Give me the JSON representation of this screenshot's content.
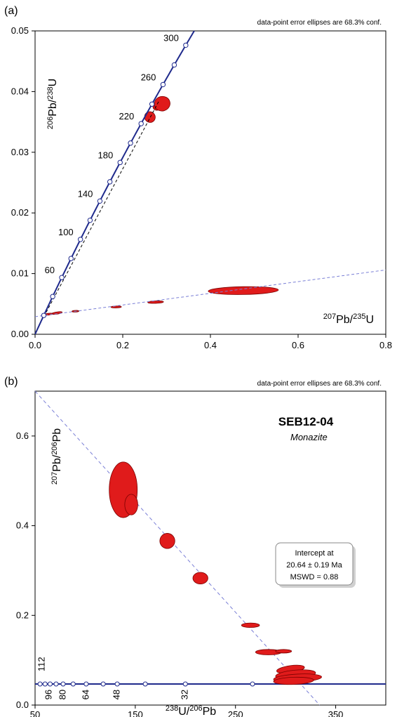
{
  "chart_data": [
    {
      "panel_label": "(a)",
      "type": "scatter",
      "subtype": "Wetherill concordia diagram with error ellipses",
      "note": "data-point error ellipses are 68.3% conf.",
      "xlabel": {
        "sup": "207",
        "base": "Pb/",
        "sup2": "235",
        "base2": "U"
      },
      "ylabel": {
        "sup": "206",
        "base": "Pb/",
        "sup2": "238",
        "base2": "U"
      },
      "xlim": [
        0.0,
        0.8
      ],
      "ylim": [
        0.0,
        0.05
      ],
      "x_ticks": [
        0.0,
        0.2,
        0.4,
        0.6,
        0.8
      ],
      "x_tick_labels": [
        "0.0",
        "0.2",
        "0.4",
        "0.6",
        "0.8"
      ],
      "y_ticks": [
        0.0,
        0.01,
        0.02,
        0.03,
        0.04,
        0.05
      ],
      "y_tick_labels": [
        "0.00",
        "0.01",
        "0.02",
        "0.03",
        "0.04",
        "0.05"
      ],
      "grid": false,
      "colors": {
        "concordia": "#1f2a8c",
        "ellipse_fill": "#e01b1b",
        "ellipse_edge": "#7a0000",
        "discordia": "#7a7fd6",
        "reference": "#000000",
        "age_marker": "#ffffff"
      },
      "concordia_age_labels": [
        {
          "label": "60",
          "age": 60
        },
        {
          "label": "100",
          "age": 100
        },
        {
          "label": "140",
          "age": 140
        },
        {
          "label": "180",
          "age": 180
        },
        {
          "label": "220",
          "age": 220
        },
        {
          "label": "260",
          "age": 260
        },
        {
          "label": "300",
          "age": 300
        }
      ],
      "concordia_age_markers": [
        20,
        40,
        60,
        80,
        100,
        120,
        140,
        160,
        180,
        200,
        220,
        240,
        260,
        280,
        300
      ],
      "discordia_line": {
        "x": [
          0.0,
          0.8
        ],
        "y": [
          0.0029,
          0.0106
        ]
      },
      "reference_line": {
        "x": [
          0.02,
          0.283
        ],
        "y": [
          0.0029,
          0.0385
        ]
      },
      "ellipses": [
        {
          "x": 0.262,
          "y": 0.0358,
          "rx": 0.012,
          "ry": 0.0009,
          "angle": -40
        },
        {
          "x": 0.281,
          "y": 0.0377,
          "rx": 0.013,
          "ry": 0.0007,
          "angle": -35
        },
        {
          "x": 0.29,
          "y": 0.038,
          "rx": 0.018,
          "ry": 0.0012,
          "angle": -15
        },
        {
          "x": 0.475,
          "y": 0.0072,
          "rx": 0.08,
          "ry": 0.00065,
          "angle": -1
        },
        {
          "x": 0.275,
          "y": 0.0053,
          "rx": 0.018,
          "ry": 0.0002,
          "angle": -2
        },
        {
          "x": 0.185,
          "y": 0.0045,
          "rx": 0.012,
          "ry": 0.00015,
          "angle": -2
        },
        {
          "x": 0.092,
          "y": 0.0038,
          "rx": 0.008,
          "ry": 0.00012,
          "angle": -2
        },
        {
          "x": 0.05,
          "y": 0.0035,
          "rx": 0.012,
          "ry": 0.00018,
          "angle": -8
        },
        {
          "x": 0.03,
          "y": 0.0033,
          "rx": 0.01,
          "ry": 0.00015,
          "angle": -8
        }
      ]
    },
    {
      "panel_label": "(b)",
      "type": "scatter",
      "subtype": "Tera-Wasserburg concordia diagram with error ellipses",
      "note": "data-point error ellipses are 68.3% conf.",
      "sample": "SEB12-04",
      "mineral": "Monazite",
      "xlabel": {
        "sup": "238",
        "base": "U/",
        "sup2": "206",
        "base2": "Pb"
      },
      "ylabel": {
        "sup": "207",
        "base": "Pb/",
        "sup2": "206",
        "base2": "Pb"
      },
      "xlim": [
        50,
        400
      ],
      "ylim": [
        0.0,
        0.7
      ],
      "x_ticks": [
        50,
        150,
        250,
        350
      ],
      "x_tick_labels": [
        "50",
        "150",
        "250",
        "350"
      ],
      "y_ticks": [
        0.0,
        0.2,
        0.4,
        0.6
      ],
      "y_tick_labels": [
        "0.0",
        "0.2",
        "0.4",
        "0.6"
      ],
      "grid": false,
      "colors": {
        "concordia": "#1f2a8c",
        "ellipse_fill": "#e01b1b",
        "ellipse_edge": "#7a0000",
        "discordia": "#7a7fd6",
        "age_marker": "#ffffff",
        "box_border": "#888888"
      },
      "intercept_box": {
        "line1": "Intercept at",
        "line2": "20.64 ± 0.19 Ma",
        "line3": "MSWD = 0.88"
      },
      "discordia_line": {
        "x": [
          50,
          334
        ],
        "y": [
          0.7,
          0.0
        ]
      },
      "concordia_y": 0.047,
      "concordia_age_markers": [
        {
          "x": 55
        },
        {
          "x": 60
        },
        {
          "x": 65
        },
        {
          "x": 71
        },
        {
          "x": 78
        },
        {
          "x": 88
        },
        {
          "x": 101
        },
        {
          "x": 118
        },
        {
          "x": 132
        },
        {
          "x": 160
        },
        {
          "x": 200
        },
        {
          "x": 267
        }
      ],
      "concordia_age_labels": [
        {
          "label": "112",
          "x": 57,
          "y": 0.075
        },
        {
          "label": "96",
          "x": 64,
          "y": 0.012
        },
        {
          "label": "80",
          "x": 78,
          "y": 0.012
        },
        {
          "label": "64",
          "x": 101,
          "y": 0.012
        },
        {
          "label": "48",
          "x": 132,
          "y": 0.012
        },
        {
          "label": "32",
          "x": 200,
          "y": 0.012
        }
      ],
      "ellipses": [
        {
          "x": 138,
          "y": 0.48,
          "rx": 14,
          "ry": 0.062,
          "angle": 0
        },
        {
          "x": 146,
          "y": 0.447,
          "rx": 6.5,
          "ry": 0.023,
          "angle": 0
        },
        {
          "x": 182,
          "y": 0.366,
          "rx": 7.5,
          "ry": 0.017,
          "angle": 0
        },
        {
          "x": 215,
          "y": 0.283,
          "rx": 7.5,
          "ry": 0.013,
          "angle": 0
        },
        {
          "x": 265,
          "y": 0.178,
          "rx": 9,
          "ry": 0.005,
          "angle": 0
        },
        {
          "x": 283,
          "y": 0.118,
          "rx": 13,
          "ry": 0.006,
          "angle": 0
        },
        {
          "x": 298,
          "y": 0.12,
          "rx": 8,
          "ry": 0.004,
          "angle": 0
        },
        {
          "x": 305,
          "y": 0.08,
          "rx": 14,
          "ry": 0.008,
          "angle": -8
        },
        {
          "x": 310,
          "y": 0.068,
          "rx": 20,
          "ry": 0.01,
          "angle": -5
        },
        {
          "x": 312,
          "y": 0.06,
          "rx": 24,
          "ry": 0.009,
          "angle": -3
        },
        {
          "x": 308,
          "y": 0.054,
          "rx": 20,
          "ry": 0.008,
          "angle": -2
        }
      ]
    }
  ]
}
